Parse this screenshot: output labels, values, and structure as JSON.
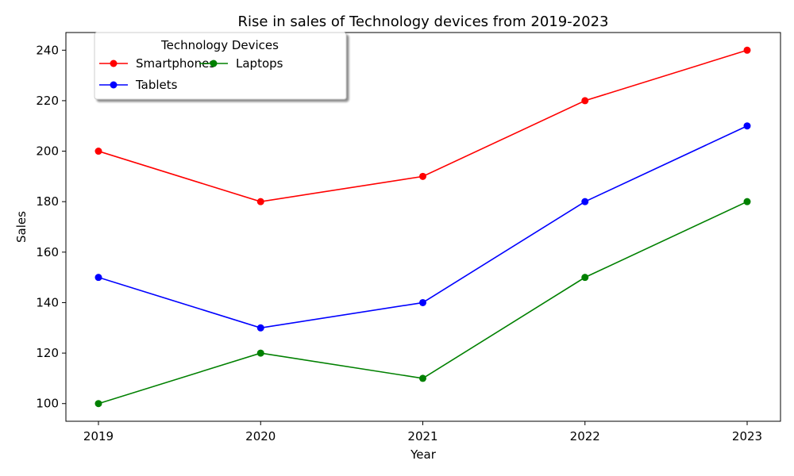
{
  "chart_data": {
    "type": "line",
    "title": "Rise in sales of Technology devices from 2019-2023",
    "xlabel": "Year",
    "ylabel": "Sales",
    "x": [
      "2019",
      "2020",
      "2021",
      "2022",
      "2023"
    ],
    "ylim": [
      93,
      247
    ],
    "yticks": [
      100,
      120,
      140,
      160,
      180,
      200,
      220,
      240
    ],
    "grid": false,
    "legend": {
      "title": "Technology Devices",
      "placement": "top-left",
      "columns": 2
    },
    "series": [
      {
        "name": "Smartphones",
        "color": "#ff0000",
        "values": [
          200,
          180,
          190,
          220,
          240
        ]
      },
      {
        "name": "Tablets",
        "color": "#0000ff",
        "values": [
          150,
          130,
          140,
          180,
          210
        ]
      },
      {
        "name": "Laptops",
        "color": "#008000",
        "values": [
          100,
          120,
          110,
          150,
          180
        ]
      }
    ]
  }
}
